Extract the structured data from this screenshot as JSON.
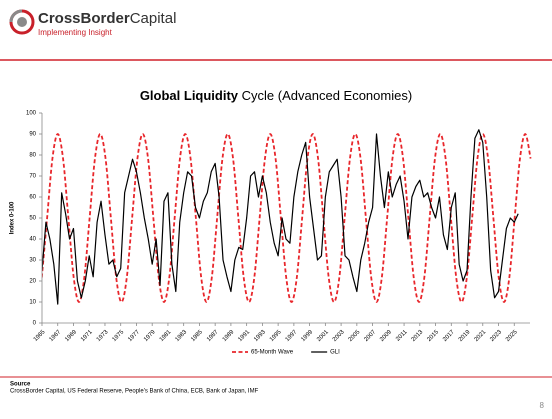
{
  "header": {
    "brand_bold": "CrossBorder",
    "brand_rest": "Capital",
    "tagline": "Implementing Insight"
  },
  "chart_data": {
    "type": "line",
    "title_bold": "Global Liquidity",
    "title_rest": "Cycle (Advanced Economies)",
    "ylabel": "Index 0-100",
    "xlim": [
      1965,
      2027
    ],
    "ylim": [
      0,
      100
    ],
    "yticks": [
      0,
      10,
      20,
      30,
      40,
      50,
      60,
      70,
      80,
      90,
      100
    ],
    "xticks": [
      1965,
      1967,
      1969,
      1971,
      1973,
      1975,
      1977,
      1979,
      1981,
      1983,
      1985,
      1987,
      1989,
      1991,
      1993,
      1995,
      1997,
      1999,
      2001,
      2003,
      2005,
      2007,
      2009,
      2011,
      2013,
      2015,
      2017,
      2019,
      2021,
      2023,
      2025
    ],
    "grid": false,
    "legend": "bottom",
    "series": [
      {
        "name": "65-Month Wave",
        "color": "#e8262b",
        "dashed": true,
        "x": [
          1964.975,
          1965.65,
          1966.325,
          1967,
          1967.675,
          1968.35,
          1969.025,
          1969.7,
          1970.375,
          1971.05,
          1971.725,
          1972.4,
          1973.075,
          1973.75,
          1974.425,
          1975.1,
          1975.775,
          1976.45,
          1977.125,
          1977.8,
          1978.475,
          1979.15,
          1979.825,
          1980.5,
          1981.175,
          1981.85,
          1982.525,
          1983.2,
          1983.875,
          1984.55,
          1985.225,
          1985.9,
          1986.575,
          1987.25,
          1987.925,
          1988.6,
          1989.275,
          1989.95,
          1990.625,
          1991.3,
          1991.975,
          1992.65,
          1993.325,
          1994,
          1994.675,
          1995.35,
          1996.025,
          1996.7,
          1997.375,
          1998.05,
          1998.725,
          1999.4,
          2000.075,
          2000.75,
          2001.425,
          2002.1,
          2002.775,
          2003.45,
          2004.125,
          2004.8,
          2005.475,
          2006.15,
          2006.825,
          2007.5,
          2008.175,
          2008.85,
          2009.525,
          2010.2,
          2010.875,
          2011.55,
          2012.225,
          2012.9,
          2013.575,
          2014.25,
          2014.925,
          2015.6,
          2016.275,
          2016.95,
          2017.625,
          2018.3,
          2018.975,
          2019.65,
          2020.325,
          2021,
          2021.675,
          2022.35,
          2023.025,
          2023.7,
          2024.375,
          2025.05,
          2025.725,
          2026.4,
          2027.075
        ],
        "values": [
          21.7,
          50,
          78.3,
          90,
          78.3,
          50,
          21.7,
          10,
          21.7,
          50,
          78.3,
          90,
          78.3,
          50,
          21.7,
          10,
          21.7,
          50,
          78.3,
          90,
          78.3,
          50,
          21.7,
          10,
          21.7,
          50,
          78.3,
          90,
          78.3,
          50,
          21.7,
          10,
          21.7,
          50,
          78.3,
          90,
          78.3,
          50,
          21.7,
          10,
          21.7,
          50,
          78.3,
          90,
          78.3,
          50,
          21.7,
          10,
          21.7,
          50,
          78.3,
          90,
          78.3,
          50,
          21.7,
          10,
          21.7,
          50,
          78.3,
          90,
          78.3,
          50,
          21.7,
          10,
          21.7,
          50,
          78.3,
          90,
          78.3,
          50,
          21.7,
          10,
          21.7,
          50,
          78.3,
          90,
          78.3,
          50,
          21.7,
          10,
          21.7,
          50,
          78.3,
          90,
          78.3,
          50,
          21.7,
          10,
          21.7,
          50,
          78.3,
          90,
          78.3
        ]
      },
      {
        "name": "GLI",
        "color": "#000000",
        "dashed": false,
        "x": [
          1965,
          1965.5,
          1966,
          1966.5,
          1967,
          1967.5,
          1968,
          1968.5,
          1969,
          1969.5,
          1970,
          1970.5,
          1971,
          1971.5,
          1972,
          1972.5,
          1973,
          1973.5,
          1974,
          1974.5,
          1975,
          1975.5,
          1976,
          1976.5,
          1977,
          1977.5,
          1978,
          1978.5,
          1979,
          1979.5,
          1980,
          1980.5,
          1981,
          1981.5,
          1982,
          1982.5,
          1983,
          1983.5,
          1984,
          1984.5,
          1985,
          1985.5,
          1986,
          1986.5,
          1987,
          1987.5,
          1988,
          1988.5,
          1989,
          1989.5,
          1990,
          1990.5,
          1991,
          1991.5,
          1992,
          1992.5,
          1993,
          1993.5,
          1994,
          1994.5,
          1995,
          1995.5,
          1996,
          1996.5,
          1997,
          1997.5,
          1998,
          1998.5,
          1999,
          1999.5,
          2000,
          2000.5,
          2001,
          2001.5,
          2002,
          2002.5,
          2003,
          2003.5,
          2004,
          2004.5,
          2005,
          2005.5,
          2006,
          2006.5,
          2007,
          2007.5,
          2008,
          2008.5,
          2009,
          2009.5,
          2010,
          2010.5,
          2011,
          2011.5,
          2012,
          2012.5,
          2013,
          2013.5,
          2014,
          2014.5,
          2015,
          2015.5,
          2016,
          2016.5,
          2017,
          2017.5,
          2018,
          2018.5,
          2019,
          2019.5,
          2020,
          2020.5,
          2021,
          2021.5,
          2022,
          2022.5,
          2023,
          2023.5,
          2024,
          2024.5,
          2025,
          2025.5
        ],
        "values": [
          25,
          48,
          40,
          28,
          9,
          62,
          52,
          40,
          45,
          20,
          12,
          20,
          32,
          22,
          48,
          58,
          42,
          28,
          30,
          22,
          26,
          62,
          70,
          78,
          72,
          62,
          50,
          40,
          28,
          40,
          18,
          58,
          62,
          28,
          15,
          48,
          62,
          72,
          70,
          55,
          50,
          58,
          62,
          72,
          76,
          60,
          30,
          22,
          15,
          30,
          36,
          35,
          50,
          70,
          72,
          60,
          70,
          62,
          48,
          38,
          32,
          50,
          40,
          38,
          60,
          72,
          80,
          86,
          60,
          45,
          30,
          32,
          60,
          72,
          75,
          78,
          60,
          32,
          30,
          22,
          15,
          30,
          38,
          48,
          55,
          90,
          70,
          55,
          72,
          60,
          66,
          70,
          58,
          40,
          60,
          65,
          68,
          60,
          62,
          55,
          50,
          60,
          42,
          35,
          55,
          62,
          28,
          20,
          25,
          60,
          88,
          92,
          86,
          60,
          25,
          12,
          15,
          30,
          45,
          50,
          48,
          52
        ]
      }
    ]
  },
  "footer": {
    "source_label": "Source",
    "source": "CrossBorder Capital, US Federal Reserve, People's Bank of China, ECB, Bank of Japan, IMF",
    "page": "8"
  }
}
